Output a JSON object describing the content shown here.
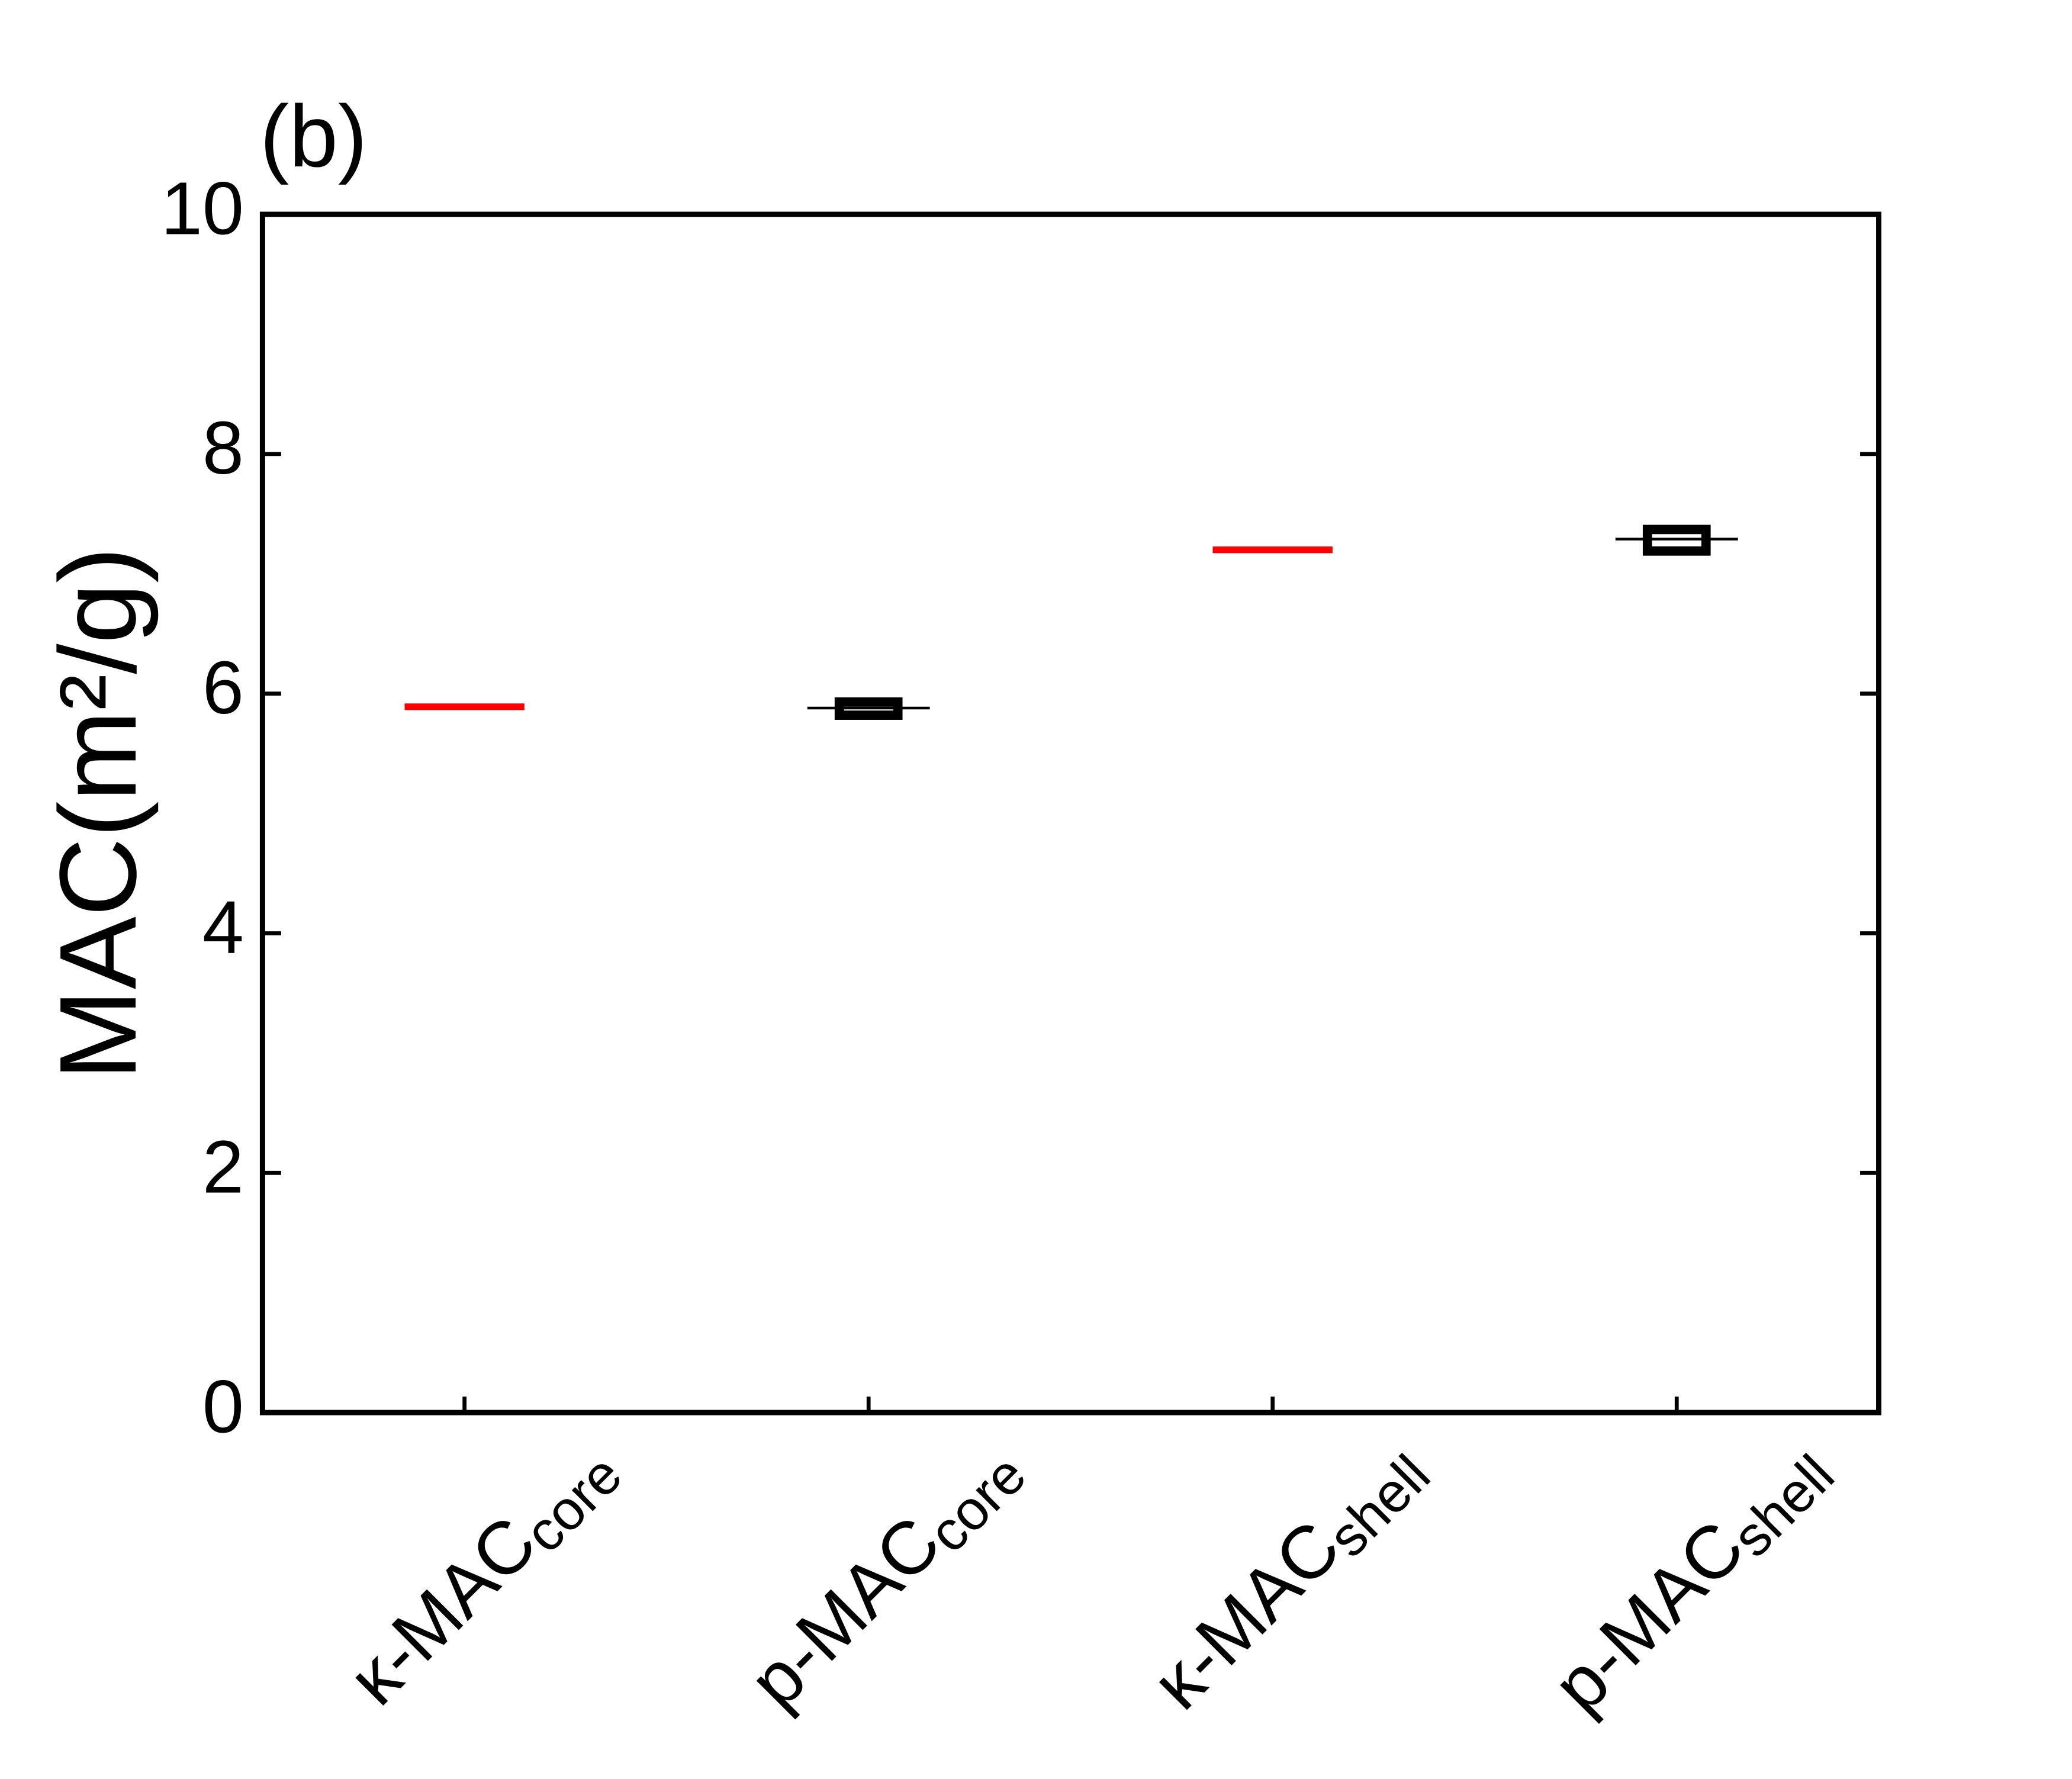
{
  "chart_data": {
    "type": "box",
    "panel_label": "(b)",
    "y_label": "MAC(m²/g)",
    "categories": [
      "κ-MAC",
      "p-MAC",
      "κ-MAC",
      "p-MAC"
    ],
    "category_subscripts": [
      "core",
      "core",
      "shell",
      "shell"
    ],
    "values": [
      5.89,
      null,
      7.2,
      null
    ],
    "line_color": "#ff0000",
    "boxes": [
      null,
      {
        "q1": 5.82,
        "median": 5.88,
        "q3": 5.93
      },
      null,
      {
        "q1": 7.19,
        "median": 7.29,
        "q3": 7.37
      }
    ],
    "box_color": "#000000",
    "ylim": [
      0,
      10
    ],
    "yticks": [
      0,
      2,
      4,
      6,
      8,
      10
    ]
  }
}
